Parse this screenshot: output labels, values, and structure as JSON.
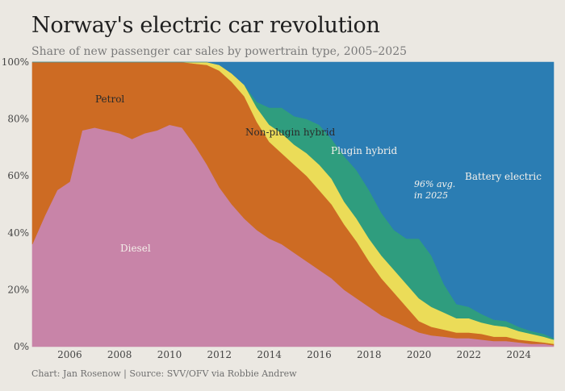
{
  "title": "Norway's electric car revolution",
  "subtitle": "Share of new passenger car sales by powertrain type, 2005–2025",
  "credit": "Chart: Jan Rosenow | Source: SVV/OFV via Robbie Andrew",
  "colors": {
    "background": "#ebe8e2",
    "diesel": "#c884a8",
    "petrol": "#cd6b23",
    "nonplugin": "#ebdc58",
    "plugin": "#2f9d7e",
    "battery": "#2b7db3"
  },
  "chart_data": {
    "type": "area",
    "stacked": true,
    "x": [
      2005.0,
      2005.5,
      2006.0,
      2006.5,
      2007.0,
      2007.5,
      2008.0,
      2008.5,
      2009.0,
      2009.5,
      2010.0,
      2010.5,
      2011.0,
      2011.5,
      2012.0,
      2012.5,
      2013.0,
      2013.5,
      2014.0,
      2014.5,
      2015.0,
      2015.5,
      2016.0,
      2016.5,
      2017.0,
      2017.5,
      2018.0,
      2018.5,
      2019.0,
      2019.5,
      2020.0,
      2020.5,
      2021.0,
      2021.5,
      2022.0,
      2022.5,
      2023.0,
      2023.5,
      2024.0,
      2024.5,
      2025.0,
      2025.5,
      2025.9
    ],
    "series": [
      {
        "name": "Diesel",
        "color": "#c884a8",
        "values": [
          36,
          46,
          55,
          58,
          76,
          77,
          76,
          75,
          73,
          75,
          76,
          78,
          77,
          71,
          64,
          56,
          50,
          45,
          41,
          38,
          36,
          33,
          30,
          27,
          24,
          20,
          17,
          14,
          11,
          9,
          7,
          5,
          4,
          3.5,
          3,
          3,
          2.5,
          2,
          2,
          1.5,
          1,
          1,
          0.5
        ]
      },
      {
        "name": "Petrol",
        "color": "#cd6b23",
        "values": [
          64,
          54,
          45,
          42,
          24,
          23,
          24,
          25,
          27,
          25,
          24,
          22,
          23,
          28.5,
          35,
          41,
          43,
          43,
          38,
          34,
          32,
          31,
          30,
          28,
          26,
          23,
          20,
          16,
          13,
          10,
          7,
          4,
          3,
          2.5,
          2,
          2,
          2,
          1.5,
          1.5,
          1,
          1,
          0.5,
          0.5
        ]
      },
      {
        "name": "Non-plugin hybrid",
        "color": "#ebdc58",
        "values": [
          0,
          0,
          0,
          0,
          0,
          0,
          0,
          0,
          0,
          0,
          0,
          0,
          0,
          0.5,
          1,
          2,
          3,
          4,
          5,
          6,
          7,
          7,
          8,
          9,
          9,
          8,
          8,
          8,
          8,
          8,
          8,
          8,
          7,
          6,
          5,
          5,
          4,
          4,
          3.5,
          3,
          2.5,
          2,
          1.5
        ]
      },
      {
        "name": "Plugin hybrid",
        "color": "#2f9d7e",
        "values": [
          0,
          0,
          0,
          0,
          0,
          0,
          0,
          0,
          0,
          0,
          0,
          0,
          0,
          0,
          0,
          0,
          0,
          0,
          2,
          6,
          9,
          10,
          12,
          14,
          14,
          16,
          17,
          17,
          15,
          14,
          16,
          21,
          18,
          10,
          5,
          4,
          3,
          2,
          2,
          1.5,
          1,
          1,
          0.5
        ]
      },
      {
        "name": "Battery electric",
        "color": "#2b7db3",
        "values": [
          0,
          0,
          0,
          0,
          0,
          0,
          0,
          0,
          0,
          0,
          0,
          0,
          0,
          0,
          0,
          1,
          4,
          8,
          14,
          16,
          16,
          19,
          20,
          22,
          27,
          33,
          38,
          45,
          53,
          59,
          62,
          62,
          68,
          78,
          85,
          86,
          88.5,
          90.5,
          91,
          93,
          94.5,
          95.5,
          97
        ]
      }
    ],
    "x_ticks": [
      "2006",
      "2008",
      "2010",
      "2012",
      "2014",
      "2016",
      "2018",
      "2020",
      "2022",
      "2024"
    ],
    "y_ticks": [
      "0%",
      "20%",
      "40%",
      "60%",
      "80%",
      "100%"
    ],
    "xlim": [
      2005,
      2025.9
    ],
    "ylim": [
      0,
      100
    ],
    "grid": false,
    "labels": {
      "diesel": "Diesel",
      "petrol": "Petrol",
      "nonplugin": "Non-plugin hybrid",
      "plugin": "Plugin hybrid",
      "battery": "Battery electric"
    },
    "annotation": [
      "96% avg.",
      "in 2025"
    ]
  }
}
